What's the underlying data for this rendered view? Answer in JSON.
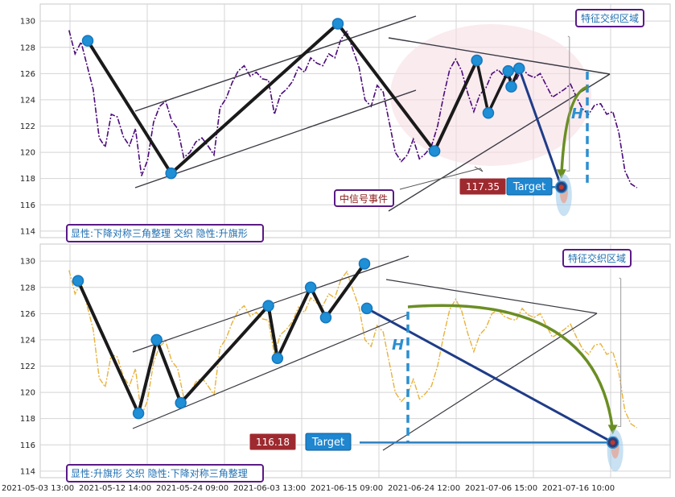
{
  "colors": {
    "top_series": "#4b0a7a",
    "bottom_series": "#e8b23a",
    "pattern_line": "#1a1a1a",
    "channel_line": "#3a3a44",
    "node": "#1f8fd6",
    "target_red": "#9e2a2f",
    "target_blue": "#1f86d0",
    "arc_green": "#6b8e23",
    "box_border": "#5a1a86",
    "box_text": "#1f6fb2"
  },
  "chart_data": [
    {
      "type": "line",
      "panel": "top",
      "ylim": [
        113.5,
        131.3
      ],
      "yticks": [
        114,
        116,
        118,
        120,
        122,
        124,
        126,
        128,
        130
      ],
      "x_range": [
        0,
        100
      ],
      "series": [
        {
          "line_style": "dash-dot",
          "x": [
            0.5,
            1.5,
            2.5,
            3.5,
            4.5,
            5.5,
            6.5,
            7.5,
            8.5,
            9.5,
            10.5,
            11.5,
            12.5,
            13.5,
            14.5,
            15.5,
            16.5,
            17.5,
            18.5,
            19.5,
            20.5,
            21.5,
            22.5,
            23.5,
            24.5,
            25.5,
            26.5,
            27.5,
            28.5,
            29.5,
            30.5,
            31.5,
            32.5,
            33.5,
            34.5,
            35.5,
            36.5,
            37.5,
            38.5,
            39.5,
            40.5,
            41.5,
            42.5,
            43.5,
            44.5,
            45.5,
            46.5,
            47.5,
            48.5,
            49.5,
            50.5,
            51.5,
            52.5,
            53.5,
            54.5,
            55.5,
            56.5,
            57.5,
            58.5,
            59.5,
            60.5,
            61.5,
            62.5,
            63.5,
            64.5,
            65.5,
            66.5,
            67.5,
            68.5,
            69.5,
            70.5,
            71.5,
            72.5,
            73.5,
            74.5,
            75.5,
            76.5,
            77.5,
            78.5,
            79.5,
            80.5,
            81.5,
            82.5,
            83.5,
            84.5,
            85.5,
            86.5,
            87.5,
            88.5,
            89.5,
            90.5,
            91.5,
            92.5,
            93.5,
            94.5
          ],
          "y": [
            129.3,
            127.5,
            128.4,
            126.6,
            124.8,
            121.1,
            120.4,
            122.9,
            122.7,
            121.2,
            120.5,
            121.8,
            118.2,
            119.4,
            122.3,
            123.5,
            123.9,
            122.4,
            121.8,
            119.6,
            120.0,
            120.8,
            121.1,
            120.5,
            119.8,
            123.4,
            124.1,
            125.3,
            126.2,
            126.6,
            125.8,
            126.1,
            125.6,
            125.5,
            122.9,
            124.4,
            124.8,
            125.4,
            126.5,
            126.1,
            127.2,
            126.8,
            126.6,
            127.5,
            127.2,
            128.6,
            129.2,
            127.8,
            126.5,
            124.0,
            123.5,
            125.1,
            124.6,
            122.3,
            120.0,
            119.3,
            119.8,
            121.0,
            119.5,
            119.9,
            120.5,
            122.0,
            124.3,
            126.3,
            127.1,
            126.2,
            124.5,
            123.1,
            124.4,
            124.9,
            126.0,
            126.3,
            125.8,
            125.6,
            125.5,
            126.4,
            125.9,
            125.7,
            126.0,
            125.1,
            124.2,
            124.5,
            124.8,
            125.2,
            124.2,
            123.3,
            122.9,
            123.6,
            123.7,
            122.9,
            123.1,
            121.5,
            118.6,
            117.6,
            117.3
          ]
        }
      ],
      "pattern_nodes": {
        "x": [
          3.6,
          17.4,
          45.0,
          61.0,
          68.0,
          69.9,
          73.2,
          73.7,
          75.0,
          82.0
        ],
        "y": [
          128.5,
          118.4,
          129.8,
          120.1,
          127.0,
          123.0,
          126.2,
          125.0,
          126.4,
          117.35
        ]
      },
      "target_value": "117.35",
      "target_label": "Target",
      "h_label": "H",
      "event_label": "中信号事件",
      "region_label": "特征交织区域",
      "pattern_label": "显性:下降对称三角整理 交织 隐性:升旗形"
    },
    {
      "type": "line",
      "panel": "bottom",
      "ylim": [
        113.5,
        131.3
      ],
      "yticks": [
        114,
        116,
        118,
        120,
        122,
        124,
        126,
        128,
        130
      ],
      "x_range": [
        0,
        100
      ],
      "series": [
        {
          "line_style": "dash-dot",
          "x": [
            0.5,
            1.5,
            2.5,
            3.5,
            4.5,
            5.5,
            6.5,
            7.5,
            8.5,
            9.5,
            10.5,
            11.5,
            12.5,
            13.5,
            14.5,
            15.5,
            16.5,
            17.5,
            18.5,
            19.5,
            20.5,
            21.5,
            22.5,
            23.5,
            24.5,
            25.5,
            26.5,
            27.5,
            28.5,
            29.5,
            30.5,
            31.5,
            32.5,
            33.5,
            34.5,
            35.5,
            36.5,
            37.5,
            38.5,
            39.5,
            40.5,
            41.5,
            42.5,
            43.5,
            44.5,
            45.5,
            46.5,
            47.5,
            48.5,
            49.5,
            50.5,
            51.5,
            52.5,
            53.5,
            54.5,
            55.5,
            56.5,
            57.5,
            58.5,
            59.5,
            60.5,
            61.5,
            62.5,
            63.5,
            64.5,
            65.5,
            66.5,
            67.5,
            68.5,
            69.5,
            70.5,
            71.5,
            72.5,
            73.5,
            74.5,
            75.5,
            76.5,
            77.5,
            78.5,
            79.5,
            80.5,
            81.5,
            82.5,
            83.5,
            84.5,
            85.5,
            86.5,
            87.5,
            88.5,
            89.5,
            90.5,
            91.5,
            92.5,
            93.5,
            94.5
          ],
          "y": [
            129.3,
            127.5,
            128.4,
            126.6,
            124.8,
            121.1,
            120.4,
            122.9,
            122.7,
            121.2,
            120.5,
            121.8,
            118.2,
            119.4,
            122.3,
            123.5,
            123.9,
            122.4,
            121.8,
            119.6,
            120.0,
            120.8,
            121.1,
            120.5,
            119.8,
            123.4,
            124.1,
            125.3,
            126.2,
            126.6,
            125.8,
            126.1,
            125.6,
            125.5,
            122.9,
            124.4,
            124.8,
            125.4,
            126.5,
            126.1,
            127.2,
            126.8,
            126.6,
            127.5,
            127.2,
            128.6,
            129.2,
            127.8,
            126.5,
            124.0,
            123.5,
            125.1,
            124.6,
            122.3,
            120.0,
            119.3,
            119.8,
            121.0,
            119.5,
            119.9,
            120.5,
            122.0,
            124.3,
            126.3,
            127.1,
            126.2,
            124.5,
            123.1,
            124.4,
            124.9,
            126.0,
            126.3,
            125.8,
            125.6,
            125.5,
            126.4,
            125.9,
            125.7,
            126.0,
            125.1,
            124.2,
            124.5,
            124.8,
            125.2,
            124.2,
            123.3,
            122.9,
            123.6,
            123.7,
            122.9,
            123.1,
            121.5,
            118.6,
            117.6,
            117.3
          ]
        }
      ],
      "pattern_nodes": {
        "x": [
          2.0,
          12.0,
          15.0,
          19.0,
          33.5,
          35.0,
          40.5,
          43.0,
          49.4,
          49.8,
          90.5
        ],
        "y": [
          128.5,
          118.4,
          124.0,
          119.2,
          126.6,
          122.6,
          128.0,
          125.7,
          129.8,
          126.4,
          116.18
        ]
      },
      "target_value": "116.18",
      "target_label": "Target",
      "h_label": "H",
      "region_label": "特征交织区域",
      "pattern_label": "显性:升旗形 交织 隐性:下降对称三角整理"
    }
  ],
  "x_tick_labels": [
    "2021-05-03 13:00",
    "2021-05-12 14:00",
    "2021-05-24 09:00",
    "2021-06-03 13:00",
    "2021-06-15 09:00",
    "2021-06-24 12:00",
    "2021-07-06 15:00",
    "2021-07-16 10:00"
  ]
}
